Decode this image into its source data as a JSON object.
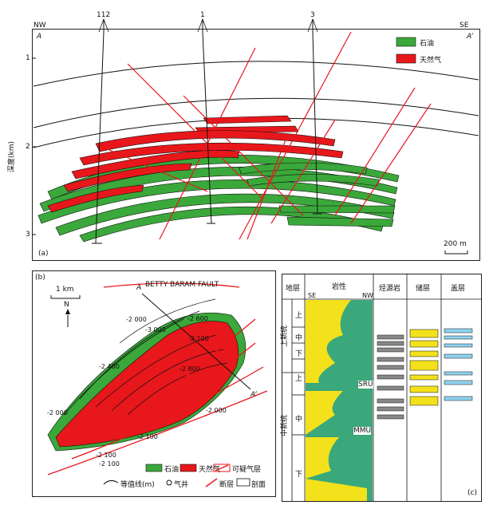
{
  "panel_a": {
    "label": "(a)",
    "nw": "NW",
    "se": "SE",
    "a_left": "A",
    "a_right": "A’",
    "depth_axis_label": "深度(km)",
    "depth_ticks": [
      "1",
      "2",
      "3"
    ],
    "well_labels": [
      "112",
      "1",
      "3"
    ],
    "scale_label": "200 m",
    "legend": [
      {
        "label": "石油",
        "color": "#3aa83a"
      },
      {
        "label": "天然气",
        "color": "#e8171b"
      }
    ]
  },
  "panel_b": {
    "label": "(b)",
    "scale_label": "1 km",
    "north_label": "N",
    "fault_name": "BETTY BARAM FAULT",
    "section_start": "A",
    "section_end": "A’",
    "contour_labels": [
      "-2 000",
      "-2 000",
      "-3 000",
      "-2 400",
      "-2 800",
      "-2 000",
      "-2 100",
      "-2 100",
      "-2 100",
      "-2 100",
      "-2 600"
    ],
    "legend": [
      {
        "label": "石油",
        "color": "#3aa83a"
      },
      {
        "label": "天然气",
        "color": "#e8171b"
      },
      {
        "label": "可疑气层",
        "color": "#e8171b"
      },
      {
        "label": "等值线(m)"
      },
      {
        "label": "气井"
      },
      {
        "label": "断层"
      },
      {
        "label": "剖面"
      }
    ]
  },
  "panel_c": {
    "label": "(c)",
    "headers": [
      "地层",
      "岩性",
      "烃源岩",
      "储层",
      "盖层"
    ],
    "lith_se": "SE",
    "lith_nw": "NW",
    "epochs": [
      "上新统",
      "中新统"
    ],
    "subdivisions": [
      "上",
      "中",
      "下",
      "上",
      "中",
      "下"
    ],
    "unconformities": [
      "SRU",
      "MMU"
    ]
  }
}
